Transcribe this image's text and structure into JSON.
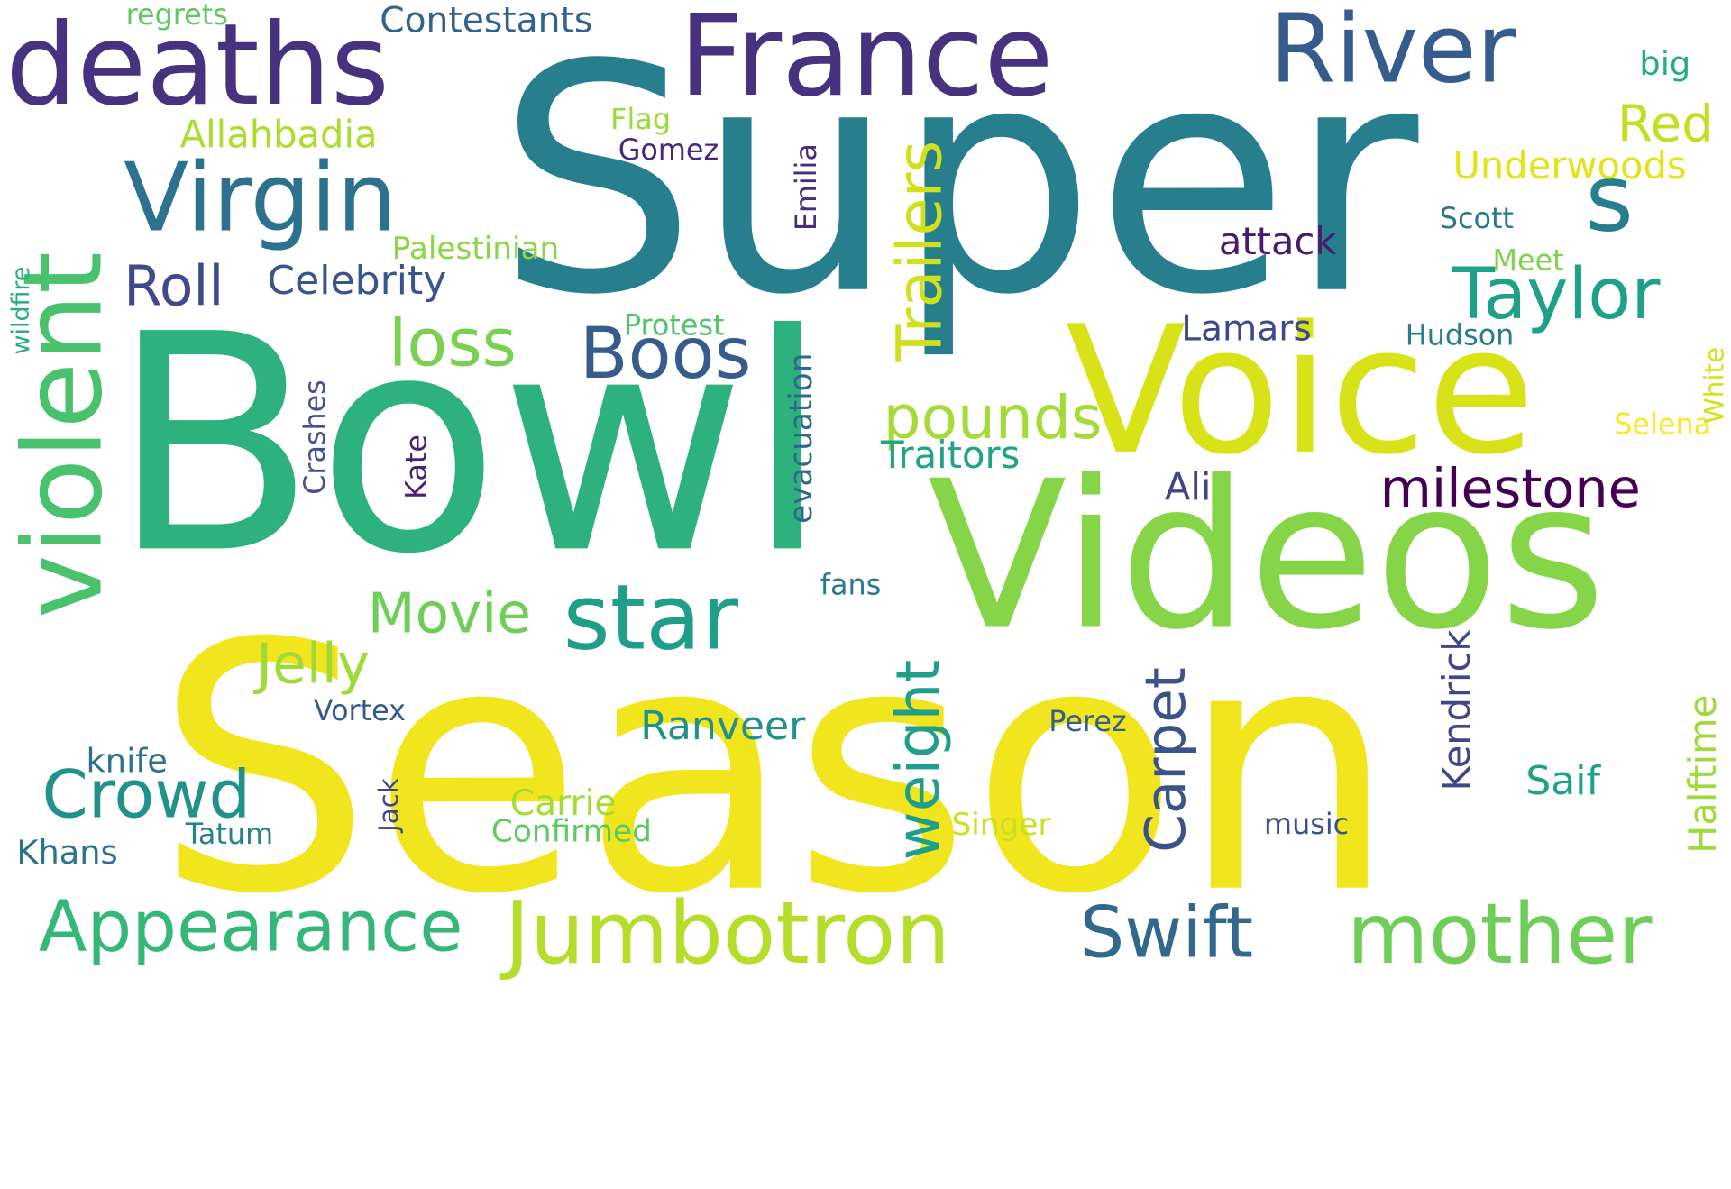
{
  "palette": {
    "purple": "#46327e",
    "dark_purple": "#440154",
    "indigo": "#3b528b",
    "blue": "#365c8d",
    "teal": "#277f8e",
    "teal_green": "#1fa187",
    "green": "#2db27d",
    "green2": "#4ac16d",
    "lime": "#a0da39",
    "lime2": "#c5e021",
    "yellow": "#fde725",
    "yellow2": "#e6e419",
    "light_green": "#74d055",
    "background": "#ffffff"
  },
  "words": [
    {
      "text": "Super",
      "color": "#277f8e"
    },
    {
      "text": "Bowl",
      "color": "#2db27d"
    },
    {
      "text": "Season",
      "color": "#f1e51d"
    },
    {
      "text": "Videos",
      "color": "#86d549"
    },
    {
      "text": "Voice",
      "color": "#d8e219"
    },
    {
      "text": "France",
      "color": "#46327e"
    },
    {
      "text": "deaths",
      "color": "#46327e"
    },
    {
      "text": "violent",
      "color": "#4ac16d"
    },
    {
      "text": "River",
      "color": "#365c8d"
    },
    {
      "text": "Virgin",
      "color": "#2c728e"
    },
    {
      "text": "s",
      "color": "#277f8e"
    },
    {
      "text": "Taylor",
      "color": "#1fa187"
    },
    {
      "text": "star",
      "color": "#1f9e89"
    },
    {
      "text": "Jumbotron",
      "color": "#b5de2b"
    },
    {
      "text": "mother",
      "color": "#6ece58"
    },
    {
      "text": "Appearance",
      "color": "#35b779"
    },
    {
      "text": "Swift",
      "color": "#31688e"
    },
    {
      "text": "Crowd",
      "color": "#21918c"
    },
    {
      "text": "Boos",
      "color": "#365c8d"
    },
    {
      "text": "Trailers",
      "color": "#d0e11c"
    },
    {
      "text": "milestone",
      "color": "#440154"
    },
    {
      "text": "weight",
      "color": "#1f9e89"
    },
    {
      "text": "Carpet",
      "color": "#3b528b"
    },
    {
      "text": "loss",
      "color": "#7ad151"
    },
    {
      "text": "pounds",
      "color": "#a5db36"
    },
    {
      "text": "Roll",
      "color": "#3e4a89"
    },
    {
      "text": "Movie",
      "color": "#6ece58"
    },
    {
      "text": "Jelly",
      "color": "#a0da39"
    },
    {
      "text": "Red",
      "color": "#c2df23"
    },
    {
      "text": "Celebrity",
      "color": "#39568c"
    },
    {
      "text": "Ranveer",
      "color": "#21918c"
    },
    {
      "text": "Allahbadia",
      "color": "#addc30"
    },
    {
      "text": "Kendrick",
      "color": "#404688"
    },
    {
      "text": "Halftime",
      "color": "#9fda3a"
    },
    {
      "text": "Underwoods",
      "color": "#e2e418"
    },
    {
      "text": "attack",
      "color": "#481b6d"
    },
    {
      "text": "Traitors",
      "color": "#20a486"
    },
    {
      "text": "Lamars",
      "color": "#3e4989"
    },
    {
      "text": "Contestants",
      "color": "#33638d"
    },
    {
      "text": "Carrie",
      "color": "#a5db36"
    },
    {
      "text": "Saif",
      "color": "#1fa088"
    },
    {
      "text": "knife",
      "color": "#2d718e"
    },
    {
      "text": "Khans",
      "color": "#2c728e"
    },
    {
      "text": "Palestinian",
      "color": "#8bd646"
    },
    {
      "text": "Gomez",
      "color": "#482878"
    },
    {
      "text": "Emilia",
      "color": "#472d7b"
    },
    {
      "text": "evacuation",
      "color": "#31688e"
    },
    {
      "text": "Vortex",
      "color": "#38598c"
    },
    {
      "text": "Confirmed",
      "color": "#5ec962"
    },
    {
      "text": "Singer",
      "color": "#c8e020"
    },
    {
      "text": "Ali",
      "color": "#414487"
    },
    {
      "text": "Crashes",
      "color": "#46508b"
    },
    {
      "text": "Kate",
      "color": "#482173"
    },
    {
      "text": "Perez",
      "color": "#34608d"
    },
    {
      "text": "Protest",
      "color": "#50c46a"
    },
    {
      "text": "Tatum",
      "color": "#26828e"
    },
    {
      "text": "music",
      "color": "#3b528b"
    },
    {
      "text": "fans",
      "color": "#2a788e"
    },
    {
      "text": "Scott",
      "color": "#2a788e"
    },
    {
      "text": "Hudson",
      "color": "#297b8e"
    },
    {
      "text": "Meet",
      "color": "#7fd34e"
    },
    {
      "text": "big",
      "color": "#25ac82"
    },
    {
      "text": "Flag",
      "color": "#9bd93c"
    },
    {
      "text": "regrets",
      "color": "#5ec962"
    },
    {
      "text": "Jack",
      "color": "#3f4788"
    },
    {
      "text": "wildfire",
      "color": "#29af7f"
    },
    {
      "text": "Selena",
      "color": "#fde725"
    },
    {
      "text": "White",
      "color": "#d2e21b"
    }
  ]
}
